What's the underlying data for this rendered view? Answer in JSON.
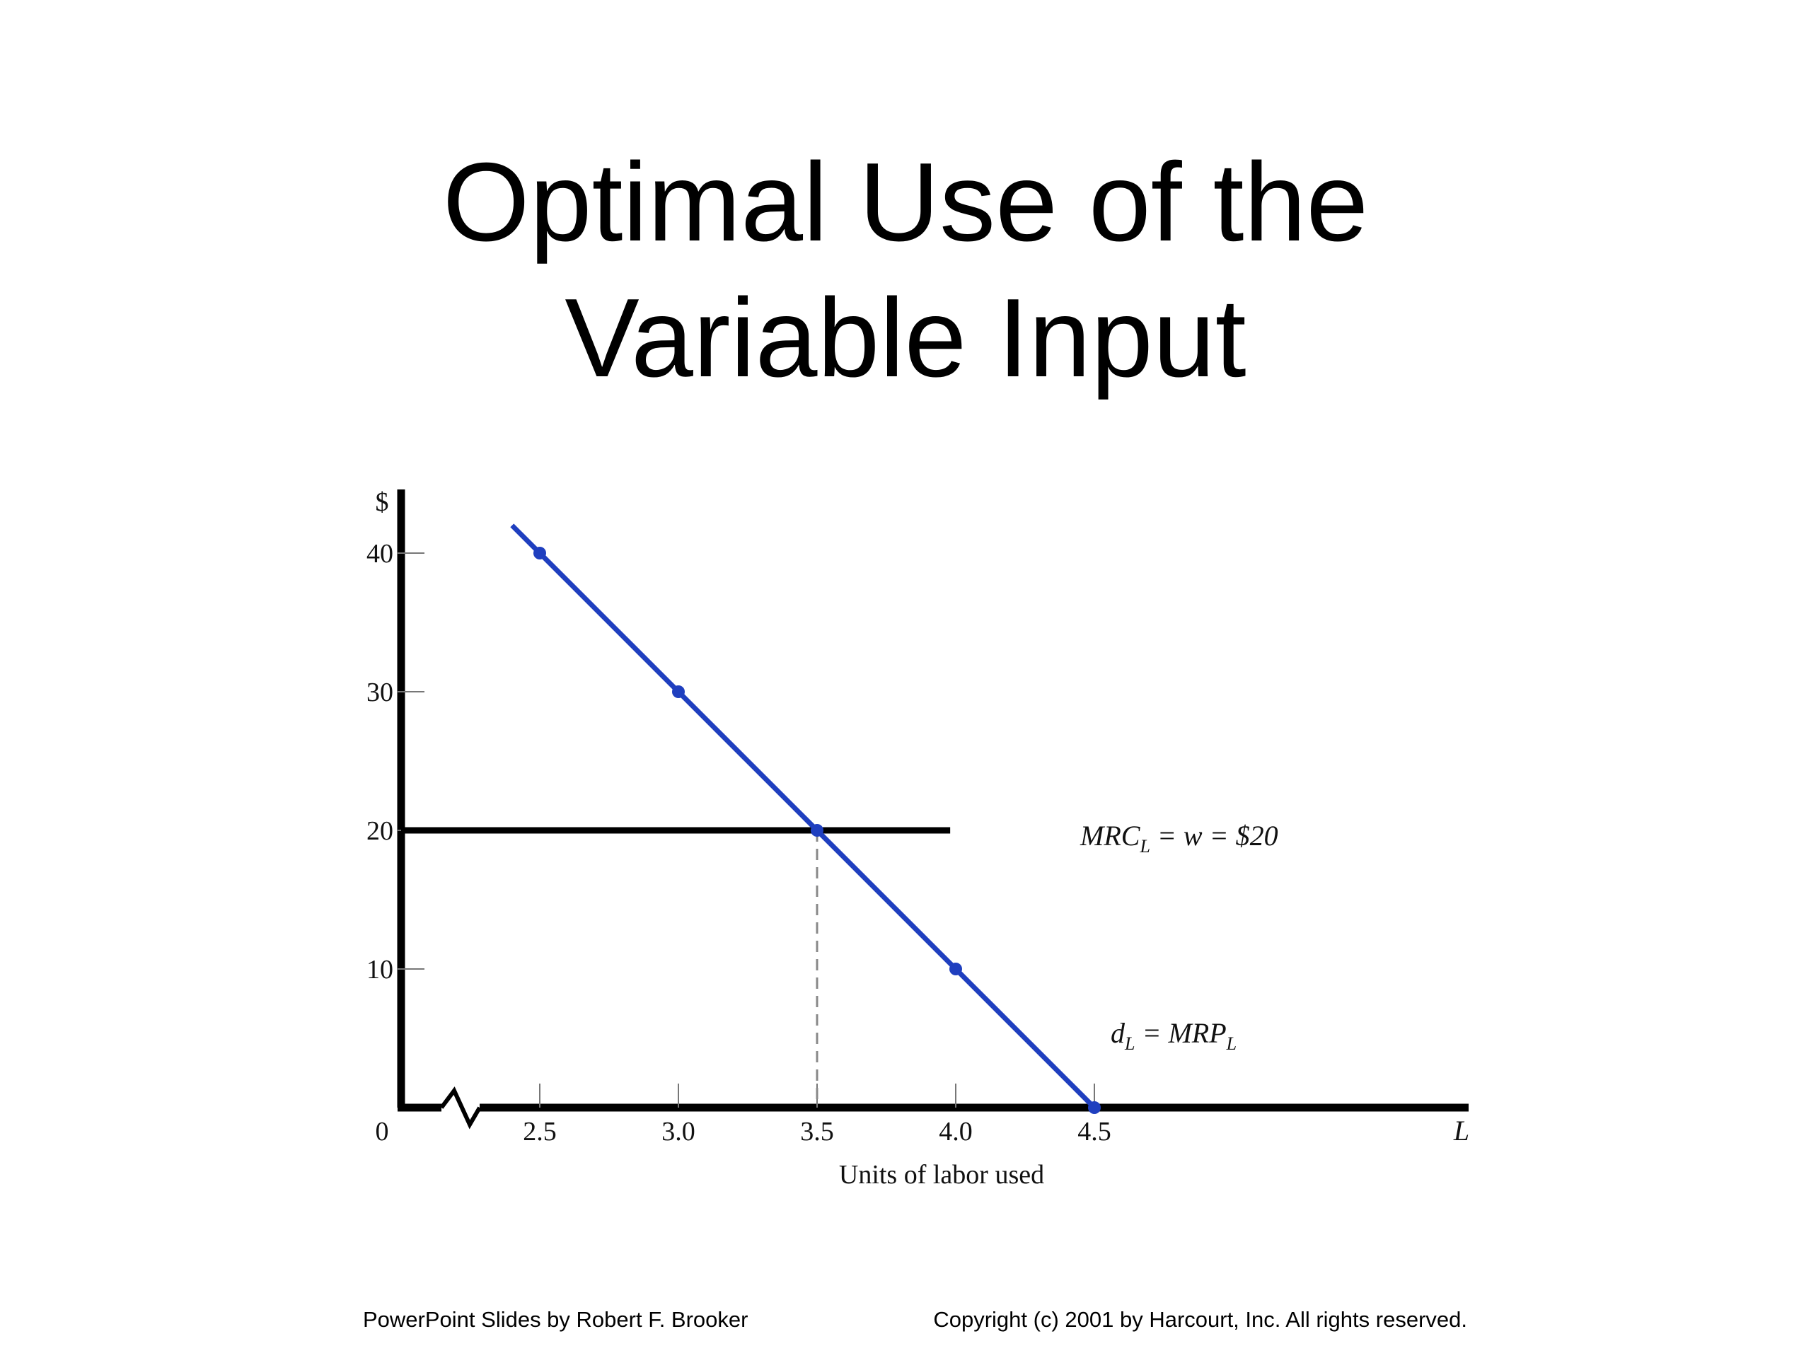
{
  "slide": {
    "title_line1": "Optimal Use of the",
    "title_line2": "Variable Input",
    "footer_left": "PowerPoint Slides by Robert F. Brooker",
    "footer_right": "Copyright (c) 2001 by Harcourt, Inc. All rights reserved."
  },
  "chart_data": {
    "type": "line",
    "ylabel": "$",
    "xlabel": "Units of labor used",
    "x_axis_end_label": "L",
    "origin_label": "0",
    "x_ticks": [
      2.5,
      3.0,
      3.5,
      4.0,
      4.5
    ],
    "x_tick_labels": [
      "2.5",
      "3.0",
      "3.5",
      "4.0",
      "4.5"
    ],
    "y_ticks": [
      10,
      20,
      30,
      40
    ],
    "y_tick_labels": [
      "10",
      "20",
      "30",
      "40"
    ],
    "xlim": [
      2.0,
      6.2
    ],
    "ylim": [
      0,
      45
    ],
    "x_axis_break": true,
    "colors": {
      "demand": "#1f3fbf",
      "axes": "#000000",
      "mrc": "#000000"
    },
    "series": [
      {
        "id": "demand",
        "label_main": "d",
        "label_sub": "L",
        "label_mid": " = MRP",
        "label_sub2": "L",
        "x": [
          2.5,
          3.0,
          3.5,
          4.0,
          4.5
        ],
        "y": [
          40,
          30,
          20,
          10,
          0
        ],
        "markers": true
      },
      {
        "id": "mrc",
        "label_main": "MRC",
        "label_sub": "L",
        "label_mid": " = w = $20",
        "x": [
          2.0,
          3.98
        ],
        "y": [
          20,
          20
        ]
      }
    ],
    "reference_line": {
      "x": 3.5,
      "y_from": 0,
      "y_to": 20,
      "style": "dashed"
    }
  }
}
